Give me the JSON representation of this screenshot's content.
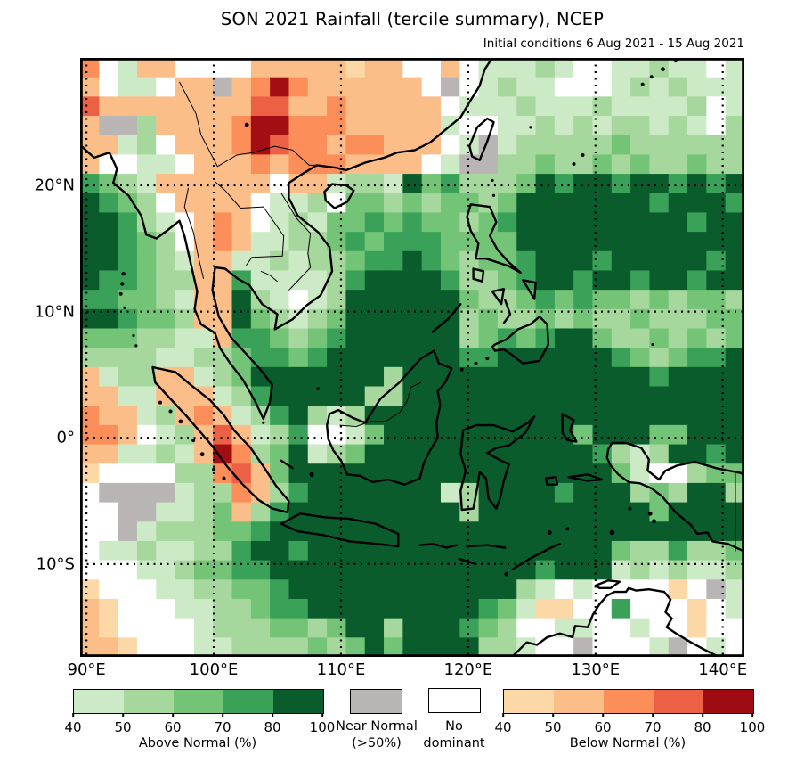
{
  "title": "SON 2021 Rainfall (tercile summary), NCEP",
  "subtitle": "Initial conditions 6 Aug 2021 - 15 Aug 2021",
  "axes": {
    "x_ticks": [
      {
        "label": "90°E",
        "lon": 90
      },
      {
        "label": "100°E",
        "lon": 100
      },
      {
        "label": "110°E",
        "lon": 110
      },
      {
        "label": "120°E",
        "lon": 120
      },
      {
        "label": "130°E",
        "lon": 130
      },
      {
        "label": "140°E",
        "lon": 140
      }
    ],
    "y_ticks": [
      {
        "label": "20°N",
        "lat": 20
      },
      {
        "label": "10°N",
        "lat": 10
      },
      {
        "label": "0°",
        "lat": 0
      },
      {
        "label": "10°S",
        "lat": -10
      }
    ]
  },
  "legend": {
    "above": {
      "title": "Above Normal (%)",
      "ticks": [
        "40",
        "50",
        "60",
        "70",
        "80",
        "100"
      ],
      "colors": [
        "#cdeac7",
        "#a6d89e",
        "#74c477",
        "#3aa258",
        "#0a5c2d"
      ]
    },
    "near": {
      "label": "Near Normal\n(>50%)",
      "color": "#b8b5b4"
    },
    "none": {
      "label": "No\ndominant",
      "color": "#ffffff"
    },
    "below": {
      "title": "Below Normal (%)",
      "ticks": [
        "40",
        "50",
        "60",
        "70",
        "80",
        "100"
      ],
      "colors": [
        "#fdd8a7",
        "#fcbe88",
        "#fc8e5a",
        "#ec6146",
        "#9e0b12"
      ]
    }
  },
  "chart_data": {
    "type": "heatmap",
    "description": "Gridded tercile-summary rainfall forecast map, ~1.5 degree cells",
    "proj": {
      "lon_min": 89.5,
      "lon_max": 141.7,
      "lat_min": -17.35,
      "lat_max": 30.1
    },
    "gridlines": {
      "lons": [
        90,
        100,
        110,
        120,
        130,
        140
      ],
      "lats": [
        20,
        10,
        0,
        -10
      ]
    },
    "cell_codes": {
      ".": "no dominant tercile (white)",
      "N": "near normal >50% (gray)",
      "1": "above normal 40-50%",
      "2": "above normal 50-60%",
      "3": "above normal 60-70%",
      "4": "above normal 70-80%",
      "5": "above normal 80-100%",
      "a": "below normal 40-50%",
      "b": "below normal 50-60%",
      "c": "below normal 60-70%",
      "d": "below normal 70-80%",
      "e": "below normal 80-100%"
    },
    "palette": {
      ".": "#ffffff",
      "N": "#b8b5b4",
      "1": "#cdeac7",
      "2": "#a6d89e",
      "3": "#74c477",
      "4": "#3aa258",
      "5": "#0a5c2d",
      "a": "#fdd8a7",
      "b": "#fcbe88",
      "c": "#fc8e5a",
      "d": "#ec6146",
      "e": "#a30e13"
    },
    "grid": [
      "c.1bb....bbbbbabb..b.11121..11211.1",
      "b.11.bbNbcecbbbbbb.N.1211...1212111",
      "dbbbbbbbbddbbcbbbbb.1112111211112.1",
      "bNN2bbbbceecccbbbbb1..11212122121.2",
      "bb12.bbbcedccbccbbb.1N1222223222222",
      "b..11.bbbcbcccbbbb.1NN2232232322322",
      "4321bbbbbb.bb1221534222354554554545",
      "5432.bbbb.112.332323323555555545554",
      "55421.bcb.1213343433234555555555455",
      "55432.bcb11223434443333555555555555",
      "554321bb112122344543233455545555545",
      "544322bb411112455554223455455455455",
      "443321bb521.12555555322343433232332",
      "554332bb532123555555232232322322233",
      "3332211b443234555555234345532232323",
      "22221122344345555555445555554323445",
      "b122bb12355555552555555555555545555",
      "bb11bbb1245555522555555555555555555",
      "cbb12bcb124521255555555555555555555",
      "ccb.12bdb124..135555555555355533555",
      "bb1121bec23512355555555555542125545",
      "a....22cdb35555555555555555531..233",
      ".NNNN122cb2455555551255554555232552",
      "..NN1123b24555555555255555555535555",
      "..N12223345555555555555555555555555",
      ".1121122455455555555555555553224223",
      "...11233445555555555555545551212112",
      "a...112233455555555555521.1....a.N1",
      "ba...1122344555555555431aa..4...a.1",
      "ba....12223323552555432..11..1..a..",
      "bba...112222323535555221..N...1N.1."
    ]
  }
}
